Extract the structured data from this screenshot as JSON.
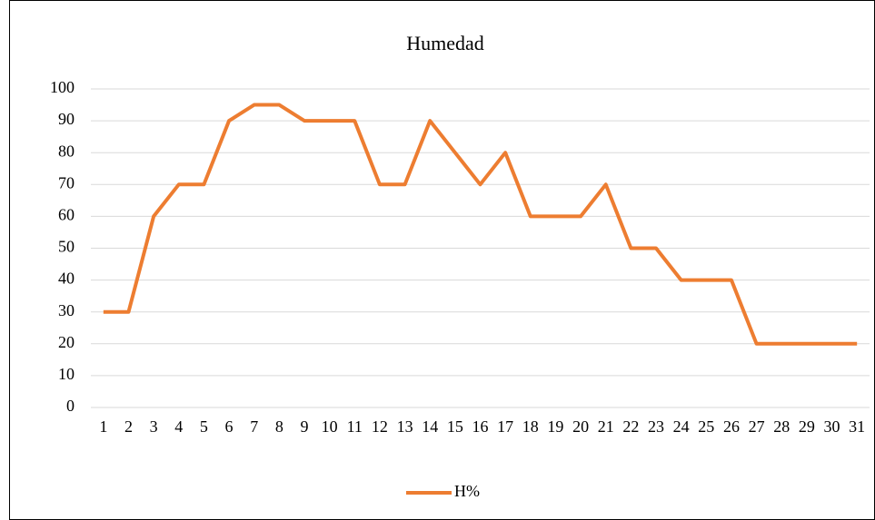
{
  "chart_data": {
    "type": "line",
    "title": "Humedad",
    "categories": [
      "1",
      "2",
      "3",
      "4",
      "5",
      "6",
      "7",
      "8",
      "9",
      "10",
      "11",
      "12",
      "13",
      "14",
      "15",
      "16",
      "17",
      "18",
      "19",
      "20",
      "21",
      "22",
      "23",
      "24",
      "25",
      "26",
      "27",
      "28",
      "29",
      "30",
      "31"
    ],
    "series": [
      {
        "name": "H%",
        "color": "#ed7d31",
        "values": [
          30,
          30,
          60,
          70,
          70,
          90,
          95,
          95,
          90,
          90,
          90,
          70,
          70,
          90,
          80,
          70,
          80,
          60,
          60,
          60,
          70,
          50,
          50,
          40,
          40,
          40,
          20,
          20,
          20,
          20,
          20
        ]
      }
    ],
    "ylim": [
      0,
      100
    ],
    "yticks": [
      0,
      10,
      20,
      30,
      40,
      50,
      60,
      70,
      80,
      90,
      100
    ],
    "grid": true,
    "legend": "bottom"
  }
}
